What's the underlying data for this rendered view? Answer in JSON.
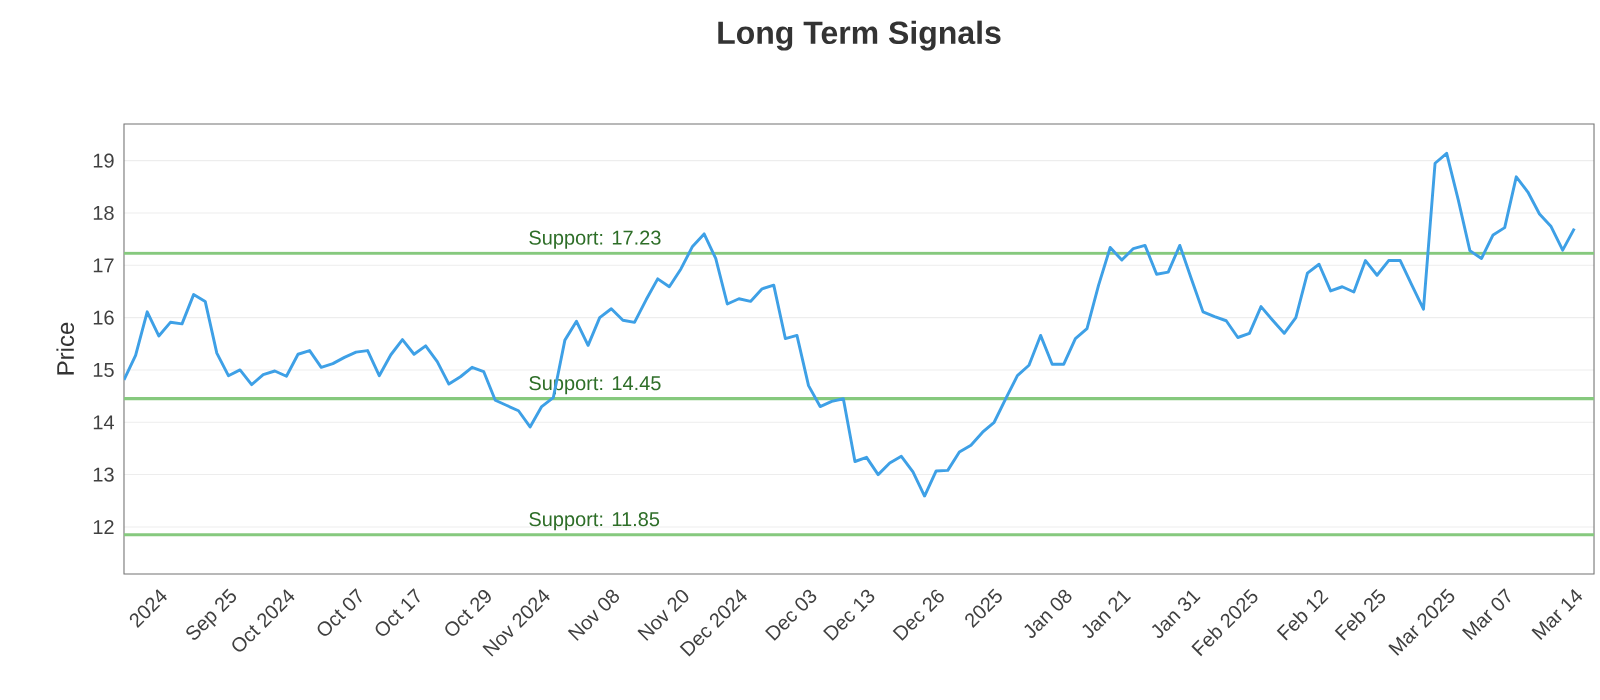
{
  "chart_data": {
    "type": "line",
    "title": "Long Term Signals",
    "ylabel": "Price",
    "categories": [
      null,
      null,
      null,
      "2024",
      null,
      null,
      null,
      null,
      null,
      "Sep 25",
      null,
      null,
      null,
      null,
      "Oct 2024",
      null,
      null,
      null,
      null,
      null,
      "Oct 07",
      null,
      null,
      null,
      null,
      "Oct 17",
      null,
      null,
      null,
      null,
      null,
      "Oct 29",
      null,
      null,
      null,
      null,
      "Nov 2024",
      null,
      null,
      null,
      null,
      null,
      "Nov 08",
      null,
      null,
      null,
      null,
      null,
      "Nov 20",
      null,
      null,
      null,
      null,
      "Dec 2024",
      null,
      null,
      null,
      null,
      null,
      "Dec 03",
      null,
      null,
      null,
      null,
      "Dec 13",
      null,
      null,
      null,
      null,
      null,
      "Dec 26",
      null,
      null,
      null,
      null,
      "2025",
      null,
      null,
      null,
      null,
      null,
      "Jan 08",
      null,
      null,
      null,
      null,
      "Jan 21",
      null,
      null,
      null,
      null,
      null,
      "Jan 31",
      null,
      null,
      null,
      null,
      "Feb 2025",
      null,
      null,
      null,
      null,
      null,
      "Feb 12",
      null,
      null,
      null,
      null,
      "Feb 25",
      null,
      null,
      null,
      null,
      null,
      "Mar 2025",
      null,
      null,
      null,
      null,
      "Mar 07",
      null,
      null,
      null,
      null,
      null,
      "Mar 14"
    ],
    "series": [
      {
        "color": "#3ea0e6",
        "values": [
          14.81,
          15.28,
          16.11,
          15.65,
          15.91,
          15.88,
          16.44,
          16.31,
          15.32,
          14.89,
          15.0,
          14.72,
          14.91,
          14.98,
          14.88,
          15.3,
          15.37,
          15.05,
          15.12,
          15.24,
          15.34,
          15.37,
          14.89,
          15.29,
          15.58,
          15.3,
          15.46,
          15.16,
          14.73,
          14.87,
          15.05,
          14.97,
          14.42,
          14.32,
          14.22,
          13.91,
          14.3,
          14.47,
          15.57,
          15.93,
          15.47,
          16.0,
          16.17,
          15.95,
          15.91,
          16.34,
          16.74,
          16.59,
          16.93,
          17.36,
          17.6,
          17.13,
          16.26,
          16.36,
          16.31,
          16.55,
          16.62,
          15.6,
          15.66,
          14.7,
          14.3,
          14.4,
          14.45,
          13.25,
          13.33,
          13.0,
          13.22,
          13.35,
          13.05,
          12.59,
          13.07,
          13.08,
          13.43,
          13.56,
          13.81,
          14.0,
          14.45,
          14.89,
          15.09,
          15.66,
          15.11,
          15.11,
          15.6,
          15.79,
          16.62,
          17.34,
          17.1,
          17.32,
          17.38,
          16.83,
          16.87,
          17.38,
          16.74,
          16.11,
          16.02,
          15.94,
          15.62,
          15.7,
          16.21,
          15.95,
          15.7,
          16.0,
          16.85,
          17.02,
          16.51,
          16.59,
          16.49,
          17.09,
          16.81,
          17.09,
          17.09,
          16.62,
          16.16,
          18.95,
          19.14,
          18.25,
          17.28,
          17.13,
          17.58,
          17.72,
          18.69,
          18.4,
          17.98,
          17.74,
          17.29,
          17.7
        ]
      }
    ],
    "ylim": [
      11.1,
      19.7
    ],
    "yticks": [
      12,
      13,
      14,
      15,
      16,
      17,
      18,
      19
    ],
    "grid": "y",
    "marker": "none",
    "line_style": "solid",
    "ref_lines": [
      {
        "axis": "y",
        "value": 17.23,
        "label": "Support: 17.23",
        "color": "#86c97e"
      },
      {
        "axis": "y",
        "value": 14.45,
        "label": "Support: 14.45",
        "color": "#86c97e"
      },
      {
        "axis": "y",
        "value": 11.85,
        "label": "Support: 11.85",
        "color": "#86c97e"
      }
    ]
  }
}
